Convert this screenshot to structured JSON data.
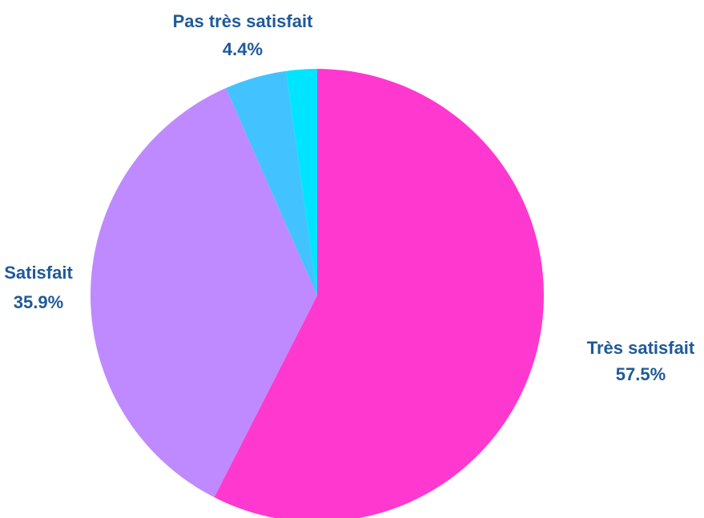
{
  "chart_data": {
    "type": "pie",
    "categories": [
      "Très satisfait",
      "Satisfait",
      "Pas très satisfait",
      null
    ],
    "values": [
      57.5,
      35.9,
      4.4,
      2.2
    ],
    "value_labels": [
      "57.5%",
      "35.9%",
      "4.4%",
      null
    ],
    "colors": [
      "#ff38d0",
      "#bf8aff",
      "#42c3ff",
      "#00e5ff"
    ]
  }
}
